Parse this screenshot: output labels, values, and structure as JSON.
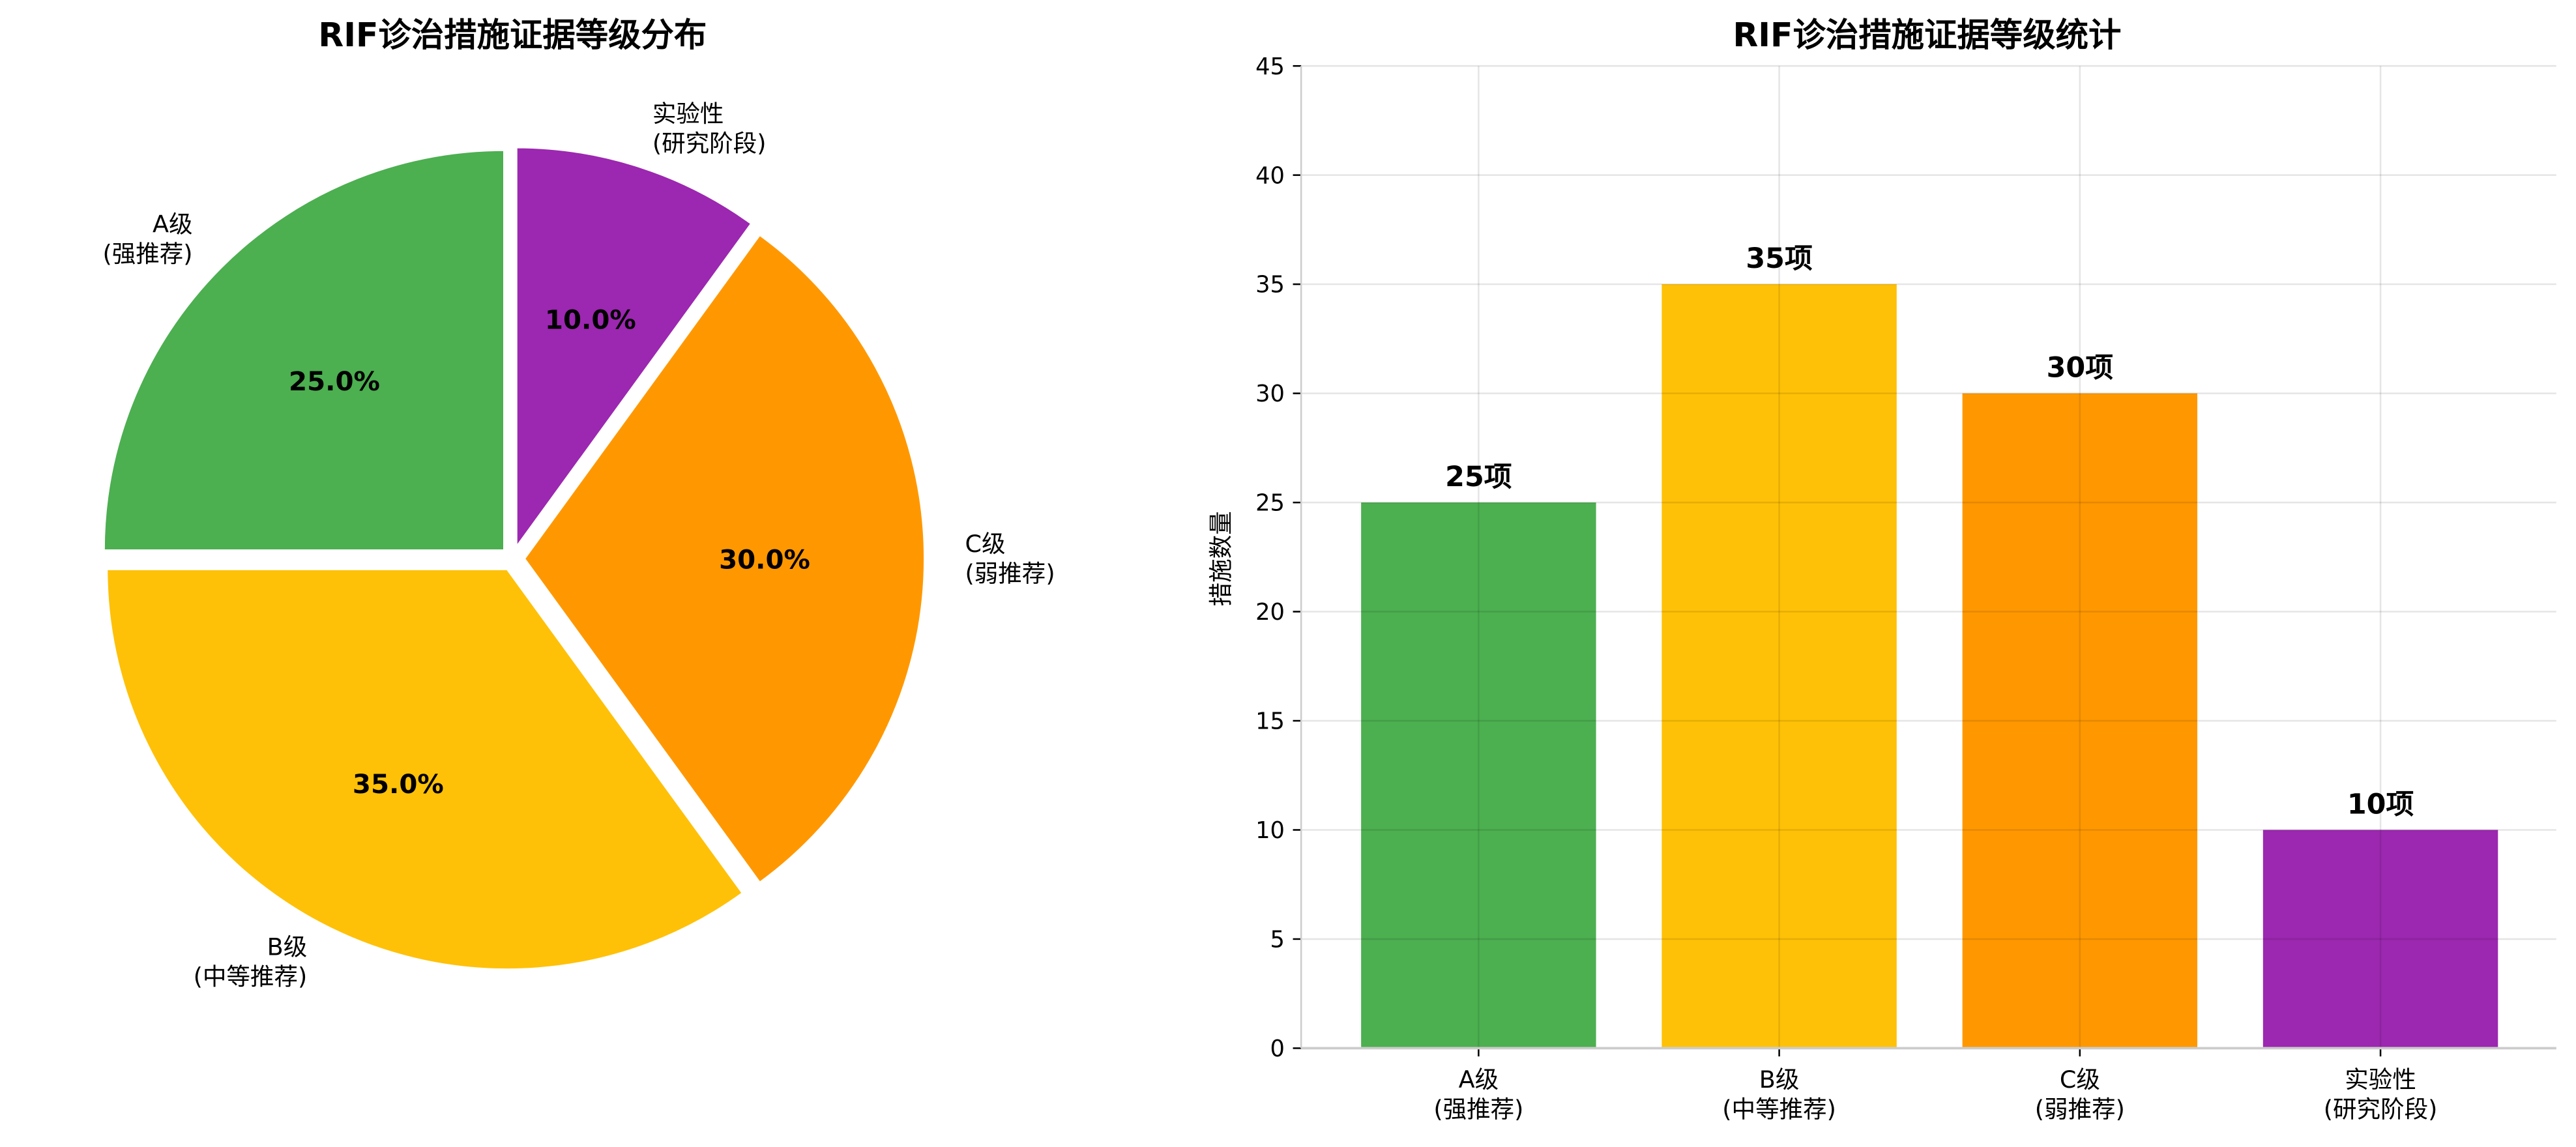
{
  "chart_data": [
    {
      "type": "pie",
      "title": "RIF诊治措施证据等级分布",
      "categories": [
        "A级\n(强推荐)",
        "B级\n(中等推荐)",
        "C级\n(弱推荐)",
        "实验性\n(研究阶段)"
      ],
      "values": [
        25,
        35,
        30,
        10
      ],
      "percent_labels": [
        "25.0%",
        "35.0%",
        "30.0%",
        "10.0%"
      ],
      "colors": [
        "#4CAF50",
        "#FFC107",
        "#FF9800",
        "#9C27B0"
      ],
      "start_angle": 90,
      "direction": "counterclockwise",
      "exploded": true
    },
    {
      "type": "bar",
      "title": "RIF诊治措施证据等级统计",
      "categories": [
        "A级\n(强推荐)",
        "B级\n(中等推荐)",
        "C级\n(弱推荐)",
        "实验性\n(研究阶段)"
      ],
      "values": [
        25,
        35,
        30,
        10
      ],
      "data_labels": [
        "25项",
        "35项",
        "30项",
        "10项"
      ],
      "colors": [
        "#4CAF50",
        "#FFC107",
        "#FF9800",
        "#9C27B0"
      ],
      "xlabel": "",
      "ylabel": "措施数量",
      "ylim": [
        0,
        45
      ],
      "yticks": [
        0,
        5,
        10,
        15,
        20,
        25,
        30,
        35,
        40,
        45
      ],
      "grid": true
    }
  ]
}
